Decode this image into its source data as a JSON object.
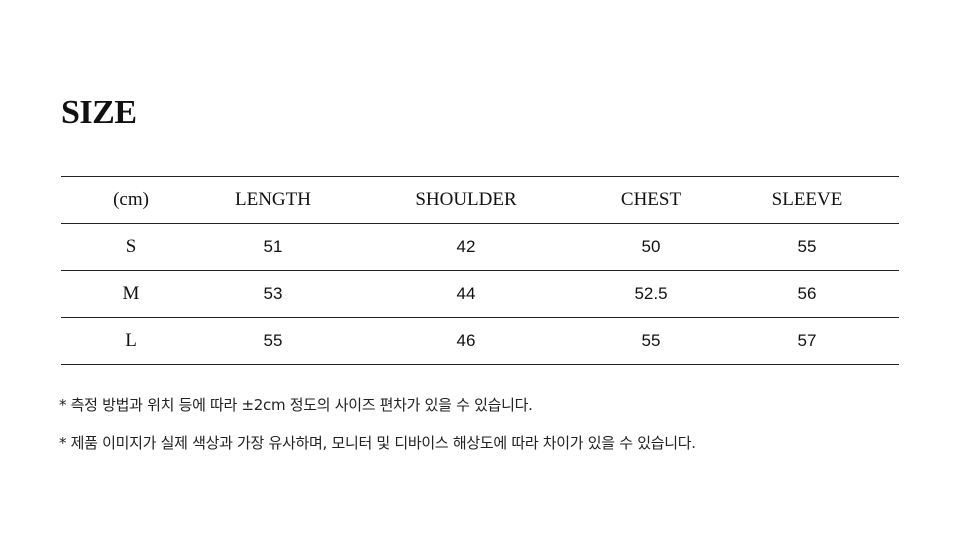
{
  "title": "SIZE",
  "table": {
    "headers": [
      "(cm)",
      "LENGTH",
      "SHOULDER",
      "CHEST",
      "SLEEVE"
    ],
    "rows": [
      [
        "S",
        "51",
        "42",
        "50",
        "55"
      ],
      [
        "M",
        "53",
        "44",
        "52.5",
        "56"
      ],
      [
        "L",
        "55",
        "46",
        "55",
        "57"
      ]
    ]
  },
  "notes": [
    "* 측정 방법과 위치 등에 따라 ±2cm 정도의 사이즈 편차가 있을 수 있습니다.",
    "* 제품 이미지가 실제 색상과 가장 유사하며, 모니터 및 디바이스 해상도에 따라 차이가 있을 수 있습니다."
  ]
}
